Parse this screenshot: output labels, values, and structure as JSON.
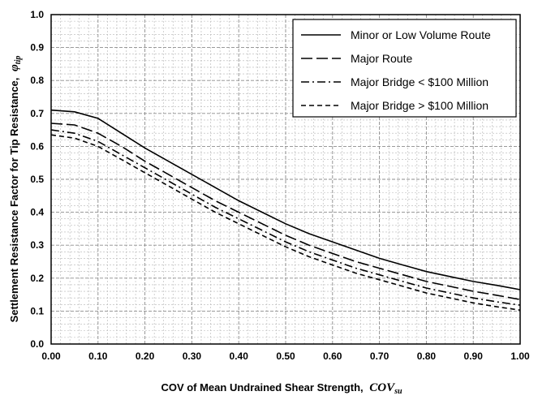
{
  "chart_data": {
    "type": "line",
    "xlabel": "COV of Mean Undrained Shear Strength,",
    "xlabel_symbol": "COV",
    "xlabel_symbol_sub": "su",
    "ylabel": "Settlement Resistance Factor for Tip Resistance,",
    "ylabel_symbol": "φ",
    "ylabel_symbol_sub": "tip",
    "xlim": [
      0,
      1
    ],
    "ylim": [
      0,
      1
    ],
    "x_ticks": [
      "0.00",
      "0.10",
      "0.20",
      "0.30",
      "0.40",
      "0.50",
      "0.60",
      "0.70",
      "0.80",
      "0.90",
      "1.00"
    ],
    "y_ticks": [
      "0.0",
      "0.1",
      "0.2",
      "0.3",
      "0.4",
      "0.5",
      "0.6",
      "0.7",
      "0.8",
      "0.9",
      "1.0"
    ],
    "grid": true,
    "legend_position": "top-right",
    "x": [
      0.0,
      0.05,
      0.1,
      0.15,
      0.2,
      0.25,
      0.3,
      0.35,
      0.4,
      0.45,
      0.5,
      0.55,
      0.6,
      0.65,
      0.7,
      0.75,
      0.8,
      0.85,
      0.9,
      0.95,
      1.0
    ],
    "series": [
      {
        "name": "Minor or Low Volume Route",
        "dash": "solid",
        "values": [
          0.71,
          0.705,
          0.685,
          0.64,
          0.595,
          0.555,
          0.515,
          0.475,
          0.435,
          0.4,
          0.365,
          0.335,
          0.31,
          0.285,
          0.26,
          0.24,
          0.22,
          0.205,
          0.19,
          0.178,
          0.165
        ]
      },
      {
        "name": "Major Route",
        "dash": "long-dash",
        "values": [
          0.67,
          0.665,
          0.64,
          0.6,
          0.555,
          0.515,
          0.475,
          0.435,
          0.4,
          0.365,
          0.33,
          0.3,
          0.275,
          0.25,
          0.23,
          0.21,
          0.19,
          0.175,
          0.16,
          0.148,
          0.135
        ]
      },
      {
        "name": "Major Bridge < $100 Million",
        "dash": "dash-dot",
        "values": [
          0.65,
          0.64,
          0.615,
          0.575,
          0.535,
          0.495,
          0.455,
          0.415,
          0.38,
          0.345,
          0.31,
          0.28,
          0.255,
          0.23,
          0.21,
          0.19,
          0.17,
          0.155,
          0.14,
          0.128,
          0.118
        ]
      },
      {
        "name": "Major Bridge > $100 Million",
        "dash": "short-dash",
        "values": [
          0.635,
          0.625,
          0.6,
          0.56,
          0.52,
          0.48,
          0.44,
          0.4,
          0.365,
          0.33,
          0.295,
          0.265,
          0.24,
          0.215,
          0.195,
          0.175,
          0.155,
          0.14,
          0.125,
          0.113,
          0.103
        ]
      }
    ]
  }
}
